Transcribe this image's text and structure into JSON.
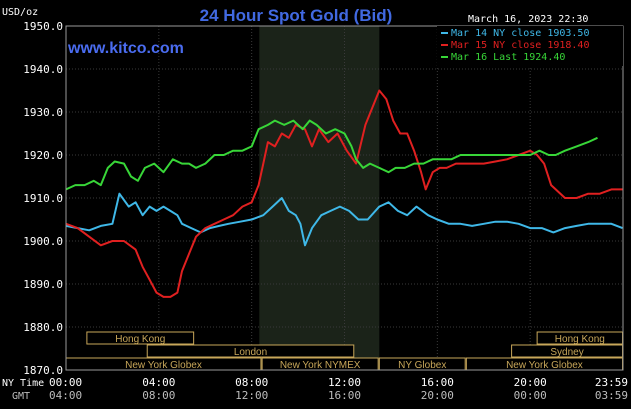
{
  "header": {
    "currency_label": "USD/oz",
    "title": "24 Hour Spot Gold (Bid)",
    "datetime": "March 16, 2023 22:30",
    "site": "www.kitco.com"
  },
  "legend": [
    {
      "label": "Mar 14 NY close 1903.50",
      "color": "#3fb8e8"
    },
    {
      "label": "Mar 15 NY close 1918.40",
      "color": "#e02020"
    },
    {
      "label": "Mar 16 Last 1924.40",
      "color": "#38d638"
    }
  ],
  "axis_titles": {
    "ny_time": "NY Time",
    "gmt": "GMT"
  },
  "sessions": [
    {
      "label": "Hong Kong",
      "color": "#c8a75a"
    },
    {
      "label": "London",
      "color": "#c8a75a"
    },
    {
      "label": "New York Globex",
      "color": "#c8a75a"
    },
    {
      "label": "New York NYMEX",
      "color": "#c8a75a"
    },
    {
      "label": "NY Globex",
      "color": "#c8a75a"
    },
    {
      "label": "New York Globex",
      "color": "#c8a75a"
    },
    {
      "label": "Sydney",
      "color": "#c8a75a"
    },
    {
      "label": "Hong Kong",
      "color": "#c8a75a"
    }
  ],
  "chart_data": {
    "type": "line",
    "title": "24 Hour Spot Gold (Bid)",
    "ylabel": "USD/oz",
    "ylim": [
      1870,
      1950
    ],
    "yticks": [
      "1870.0",
      "1880.0",
      "1890.0",
      "1900.0",
      "1910.0",
      "1920.0",
      "1930.0",
      "1940.0",
      "1950.0"
    ],
    "xlim": [
      0,
      24
    ],
    "xticks_ny": [
      "00:00",
      "04:00",
      "08:00",
      "12:00",
      "16:00",
      "20:00",
      "23:59"
    ],
    "xticks_gmt": [
      "04:00",
      "08:00",
      "12:00",
      "16:00",
      "20:00",
      "00:00",
      "03:59"
    ],
    "grid": true,
    "highlight_range_hours": [
      8.33,
      13.5
    ],
    "legend_position": "top-right",
    "series": [
      {
        "name": "Mar 14 NY close 1903.50",
        "color": "#3fb8e8",
        "points": [
          [
            0,
            1903.5
          ],
          [
            0.5,
            1903.0
          ],
          [
            1,
            1902.5
          ],
          [
            1.5,
            1903.5
          ],
          [
            2,
            1904
          ],
          [
            2.3,
            1911
          ],
          [
            2.7,
            1908
          ],
          [
            3,
            1909
          ],
          [
            3.3,
            1906
          ],
          [
            3.6,
            1908
          ],
          [
            3.9,
            1907
          ],
          [
            4.2,
            1908
          ],
          [
            4.5,
            1907
          ],
          [
            4.8,
            1906
          ],
          [
            5,
            1904
          ],
          [
            5.4,
            1903
          ],
          [
            5.8,
            1902
          ],
          [
            6.2,
            1903
          ],
          [
            6.6,
            1903.5
          ],
          [
            7,
            1904
          ],
          [
            7.5,
            1904.5
          ],
          [
            8,
            1905
          ],
          [
            8.5,
            1906
          ],
          [
            8.9,
            1908
          ],
          [
            9.3,
            1910
          ],
          [
            9.6,
            1907
          ],
          [
            9.9,
            1906
          ],
          [
            10.1,
            1904
          ],
          [
            10.3,
            1899
          ],
          [
            10.6,
            1903
          ],
          [
            11,
            1906
          ],
          [
            11.4,
            1907
          ],
          [
            11.8,
            1908
          ],
          [
            12.2,
            1907
          ],
          [
            12.6,
            1905
          ],
          [
            13,
            1905
          ],
          [
            13.5,
            1908
          ],
          [
            13.9,
            1909
          ],
          [
            14.3,
            1907
          ],
          [
            14.7,
            1906
          ],
          [
            15.1,
            1908
          ],
          [
            15.6,
            1906
          ],
          [
            16,
            1905
          ],
          [
            16.5,
            1904
          ],
          [
            17,
            1904
          ],
          [
            17.5,
            1903.5
          ],
          [
            18,
            1904
          ],
          [
            18.5,
            1904.5
          ],
          [
            19,
            1904.5
          ],
          [
            19.5,
            1904
          ],
          [
            20,
            1903
          ],
          [
            20.5,
            1903
          ],
          [
            21,
            1902
          ],
          [
            21.5,
            1903
          ],
          [
            22,
            1903.5
          ],
          [
            22.5,
            1904
          ],
          [
            23,
            1904
          ],
          [
            23.5,
            1904
          ],
          [
            23.98,
            1903
          ]
        ]
      },
      {
        "name": "Mar 15 NY close 1918.40",
        "color": "#e02020",
        "points": [
          [
            0,
            1904
          ],
          [
            0.5,
            1903
          ],
          [
            1,
            1901
          ],
          [
            1.5,
            1899
          ],
          [
            2,
            1900
          ],
          [
            2.5,
            1900
          ],
          [
            3,
            1898
          ],
          [
            3.3,
            1894
          ],
          [
            3.6,
            1891
          ],
          [
            3.9,
            1888
          ],
          [
            4.2,
            1887
          ],
          [
            4.5,
            1887
          ],
          [
            4.8,
            1888
          ],
          [
            5,
            1893
          ],
          [
            5.3,
            1897
          ],
          [
            5.6,
            1901
          ],
          [
            6,
            1903
          ],
          [
            6.4,
            1904
          ],
          [
            6.8,
            1905
          ],
          [
            7.2,
            1906
          ],
          [
            7.6,
            1908
          ],
          [
            8,
            1909
          ],
          [
            8.3,
            1913
          ],
          [
            8.5,
            1918
          ],
          [
            8.7,
            1923
          ],
          [
            9,
            1922
          ],
          [
            9.3,
            1925
          ],
          [
            9.6,
            1924
          ],
          [
            9.9,
            1927
          ],
          [
            10.3,
            1926
          ],
          [
            10.6,
            1922
          ],
          [
            10.9,
            1926
          ],
          [
            11.3,
            1923
          ],
          [
            11.7,
            1925
          ],
          [
            12.1,
            1921
          ],
          [
            12.5,
            1918
          ],
          [
            12.9,
            1927
          ],
          [
            13.2,
            1931
          ],
          [
            13.5,
            1935
          ],
          [
            13.8,
            1933
          ],
          [
            14.1,
            1928
          ],
          [
            14.4,
            1925
          ],
          [
            14.7,
            1925
          ],
          [
            15,
            1921
          ],
          [
            15.3,
            1916
          ],
          [
            15.5,
            1912
          ],
          [
            15.8,
            1916
          ],
          [
            16.1,
            1917
          ],
          [
            16.4,
            1917
          ],
          [
            16.8,
            1918
          ],
          [
            17.2,
            1918
          ],
          [
            17.6,
            1918
          ],
          [
            18,
            1918
          ],
          [
            18.5,
            1918.5
          ],
          [
            19,
            1919
          ],
          [
            19.5,
            1920
          ],
          [
            20,
            1921
          ],
          [
            20.3,
            1920
          ],
          [
            20.6,
            1918
          ],
          [
            20.9,
            1913
          ],
          [
            21.1,
            1912
          ],
          [
            21.5,
            1910
          ],
          [
            22,
            1910
          ],
          [
            22.5,
            1911
          ],
          [
            23,
            1911
          ],
          [
            23.5,
            1912
          ],
          [
            23.98,
            1912
          ]
        ]
      },
      {
        "name": "Mar 16 Last 1924.40",
        "color": "#38d638",
        "points": [
          [
            0,
            1912
          ],
          [
            0.4,
            1913
          ],
          [
            0.8,
            1913
          ],
          [
            1.2,
            1914
          ],
          [
            1.5,
            1913
          ],
          [
            1.8,
            1917
          ],
          [
            2.1,
            1918.5
          ],
          [
            2.5,
            1918
          ],
          [
            2.8,
            1915
          ],
          [
            3.1,
            1914
          ],
          [
            3.4,
            1917
          ],
          [
            3.8,
            1918
          ],
          [
            4.2,
            1916
          ],
          [
            4.6,
            1919
          ],
          [
            5,
            1918
          ],
          [
            5.3,
            1918
          ],
          [
            5.6,
            1917
          ],
          [
            6,
            1918
          ],
          [
            6.4,
            1920
          ],
          [
            6.8,
            1920
          ],
          [
            7.2,
            1921
          ],
          [
            7.6,
            1921
          ],
          [
            8,
            1922
          ],
          [
            8.3,
            1926
          ],
          [
            8.7,
            1927
          ],
          [
            9,
            1928
          ],
          [
            9.4,
            1927
          ],
          [
            9.8,
            1928
          ],
          [
            10.2,
            1926
          ],
          [
            10.5,
            1928
          ],
          [
            10.8,
            1927
          ],
          [
            11.2,
            1925
          ],
          [
            11.6,
            1926
          ],
          [
            12,
            1925
          ],
          [
            12.3,
            1922
          ],
          [
            12.5,
            1919
          ],
          [
            12.8,
            1917
          ],
          [
            13.1,
            1918
          ],
          [
            13.5,
            1917
          ],
          [
            13.9,
            1916
          ],
          [
            14.2,
            1917
          ],
          [
            14.6,
            1917
          ],
          [
            15,
            1918
          ],
          [
            15.4,
            1918
          ],
          [
            15.8,
            1919
          ],
          [
            16.2,
            1919
          ],
          [
            16.6,
            1919
          ],
          [
            17,
            1920
          ],
          [
            17.5,
            1920
          ],
          [
            18,
            1920
          ],
          [
            18.5,
            1920
          ],
          [
            19,
            1920
          ],
          [
            19.5,
            1920
          ],
          [
            20,
            1920
          ],
          [
            20.4,
            1921
          ],
          [
            20.8,
            1920
          ],
          [
            21.1,
            1920
          ],
          [
            21.5,
            1921
          ],
          [
            22,
            1922
          ],
          [
            22.5,
            1923
          ],
          [
            22.9,
            1924
          ]
        ]
      }
    ]
  }
}
